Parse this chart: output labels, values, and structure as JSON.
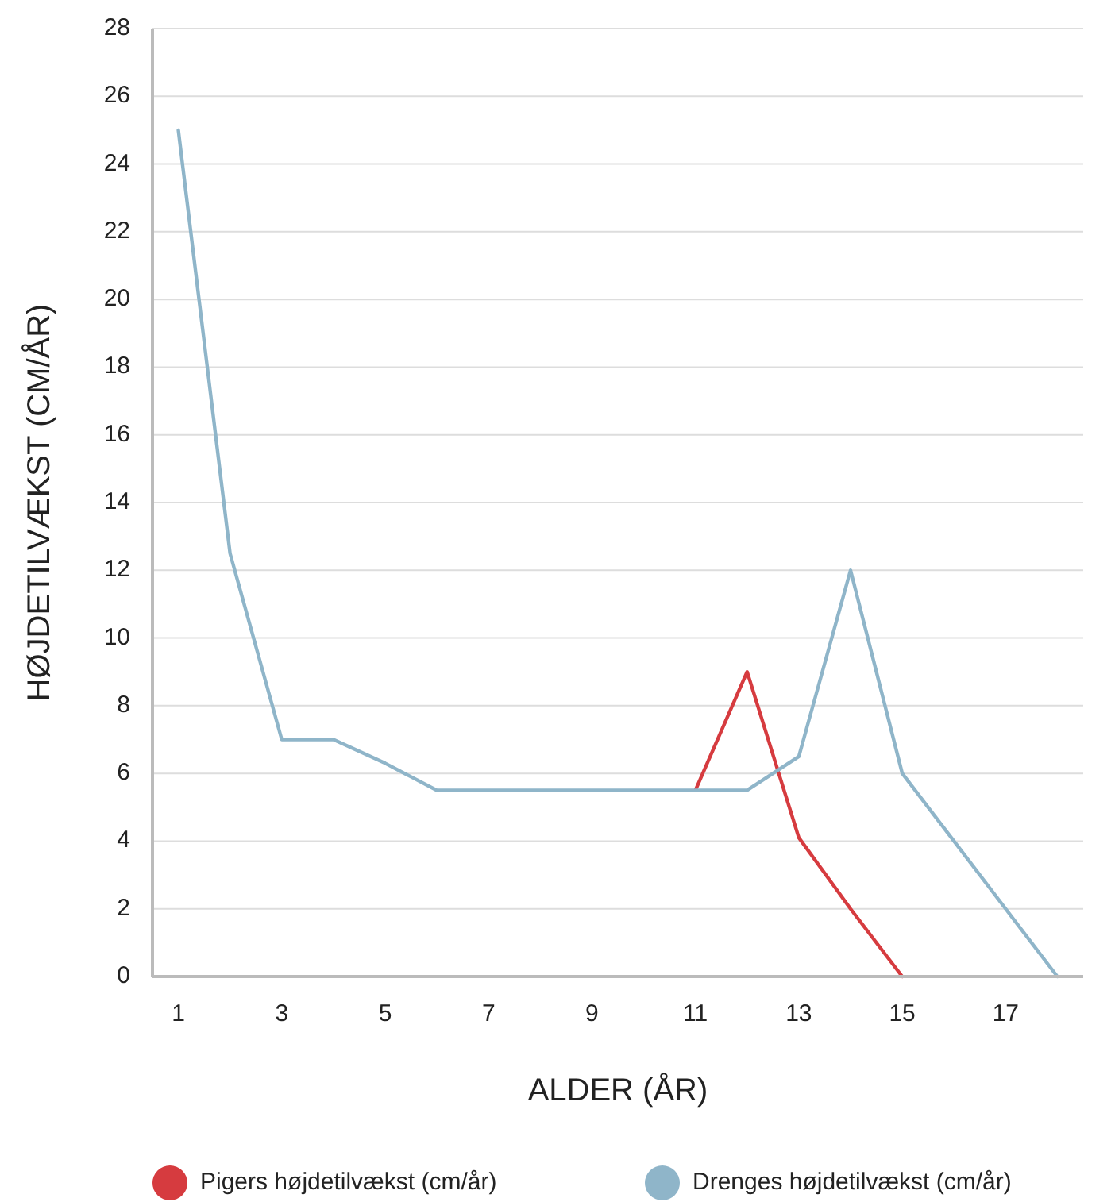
{
  "chart_data": {
    "type": "line",
    "xlabel": "ALDER (ÅR)",
    "ylabel": "HØJDETILVÆKST (CM/ÅR)",
    "xlim": [
      0.5,
      18.5
    ],
    "xticks": [
      1,
      3,
      5,
      7,
      9,
      11,
      13,
      15,
      17
    ],
    "ylim": [
      0,
      28
    ],
    "yticks": [
      0,
      2,
      4,
      6,
      8,
      10,
      12,
      14,
      16,
      18,
      20,
      22,
      24,
      26,
      28
    ],
    "grid": "y",
    "legend": "bottom",
    "marker": "none",
    "line_style": "solid",
    "series": [
      {
        "name": "Pigers højdetilvækst (cm/år)",
        "color": "#d63b3f",
        "x": [
          11,
          12,
          13,
          14,
          15
        ],
        "values": [
          5.5,
          9,
          4.1,
          2,
          0
        ]
      },
      {
        "name": "Drenges højdetilvækst (cm/år)",
        "color": "#8fb5c9",
        "x": [
          1,
          2,
          3,
          4,
          5,
          5.5,
          6,
          7,
          8,
          9,
          10,
          11,
          12,
          13,
          14,
          15,
          16,
          17,
          18
        ],
        "values": [
          25,
          12.5,
          7,
          7,
          6.3,
          5.9,
          5.5,
          5.5,
          5.5,
          5.5,
          5.5,
          5.5,
          5.5,
          6.5,
          12,
          6,
          4,
          2,
          0
        ]
      }
    ]
  }
}
